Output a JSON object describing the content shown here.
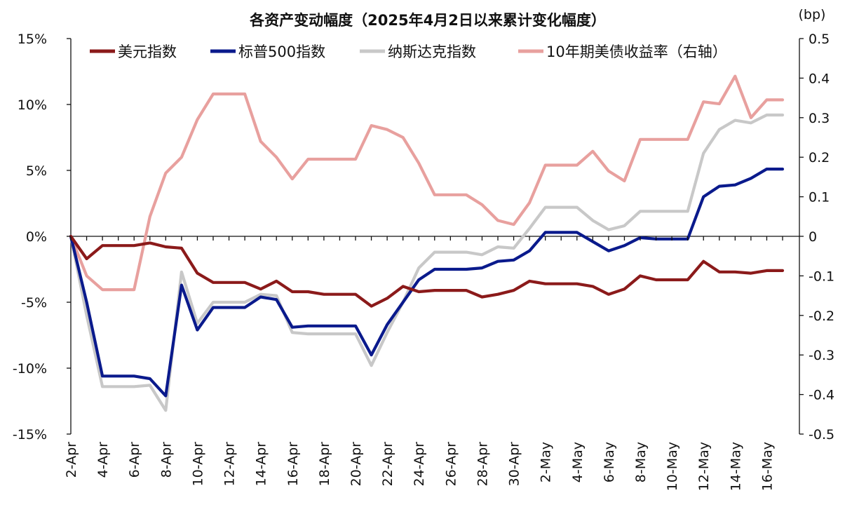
{
  "chart_data": {
    "type": "line",
    "title": "各资产变动幅度（2025年4月2日以来累计变化幅度）",
    "y2_unit_label": "(bp)",
    "left_axis": {
      "ylim": [
        -15,
        15
      ],
      "ticks": [
        15,
        10,
        5,
        0,
        -5,
        -10,
        -15
      ],
      "tick_labels": [
        "15%",
        "10%",
        "5%",
        "0%",
        "-5%",
        "-10%",
        "-15%"
      ]
    },
    "right_axis": {
      "ylim": [
        -0.5,
        0.5
      ],
      "ticks": [
        0.5,
        0.4,
        0.3,
        0.2,
        0.1,
        0,
        -0.1,
        -0.2,
        -0.3,
        -0.4,
        -0.5
      ],
      "tick_labels": [
        "0.5",
        "0.4",
        "0.3",
        "0.2",
        "0.1",
        "0",
        "-0.1",
        "-0.2",
        "-0.3",
        "-0.4",
        "-0.5"
      ]
    },
    "x": [
      "2-Apr",
      "3-Apr",
      "4-Apr",
      "5-Apr",
      "6-Apr",
      "7-Apr",
      "8-Apr",
      "9-Apr",
      "10-Apr",
      "11-Apr",
      "12-Apr",
      "13-Apr",
      "14-Apr",
      "15-Apr",
      "16-Apr",
      "17-Apr",
      "18-Apr",
      "19-Apr",
      "20-Apr",
      "21-Apr",
      "22-Apr",
      "23-Apr",
      "24-Apr",
      "25-Apr",
      "26-Apr",
      "27-Apr",
      "28-Apr",
      "29-Apr",
      "30-Apr",
      "1-May",
      "2-May",
      "3-May",
      "4-May",
      "5-May",
      "6-May",
      "7-May",
      "8-May",
      "9-May",
      "10-May",
      "11-May",
      "12-May",
      "13-May",
      "14-May",
      "15-May",
      "16-May",
      "17-May"
    ],
    "x_tick_labels": [
      "2-Apr",
      "",
      "4-Apr",
      "",
      "6-Apr",
      "",
      "8-Apr",
      "",
      "10-Apr",
      "",
      "12-Apr",
      "",
      "14-Apr",
      "",
      "16-Apr",
      "",
      "18-Apr",
      "",
      "20-Apr",
      "",
      "22-Apr",
      "",
      "24-Apr",
      "",
      "26-Apr",
      "",
      "28-Apr",
      "",
      "30-Apr",
      "",
      "2-May",
      "",
      "4-May",
      "",
      "6-May",
      "",
      "8-May",
      "",
      "10-May",
      "",
      "12-May",
      "",
      "14-May",
      "",
      "16-May",
      ""
    ],
    "legend": [
      "美元指数",
      "标普500指数",
      "纳斯达克指数",
      "10年期美债收益率（右轴）"
    ],
    "series": [
      {
        "name": "美元指数",
        "axis": "left",
        "color": "#8b1a1a",
        "values": [
          0,
          -1.7,
          -0.7,
          -0.7,
          -0.7,
          -0.5,
          -0.8,
          -0.9,
          -2.8,
          -3.5,
          -3.5,
          -3.5,
          -4.0,
          -3.4,
          -4.2,
          -4.2,
          -4.4,
          -4.4,
          -4.4,
          -5.3,
          -4.7,
          -3.8,
          -4.2,
          -4.1,
          -4.1,
          -4.1,
          -4.6,
          -4.4,
          -4.1,
          -3.4,
          -3.6,
          -3.6,
          -3.6,
          -3.8,
          -4.4,
          -4.0,
          -3.0,
          -3.3,
          -3.3,
          -3.3,
          -1.9,
          -2.7,
          -2.7,
          -2.8,
          -2.6,
          -2.6
        ]
      },
      {
        "name": "标普500指数",
        "axis": "left",
        "color": "#0a1a8c",
        "values": [
          0,
          -5.0,
          -10.6,
          -10.6,
          -10.6,
          -10.8,
          -12.1,
          -3.7,
          -7.1,
          -5.4,
          -5.4,
          -5.4,
          -4.6,
          -4.8,
          -6.9,
          -6.8,
          -6.8,
          -6.8,
          -6.8,
          -9.0,
          -6.7,
          -5.0,
          -3.3,
          -2.5,
          -2.5,
          -2.5,
          -2.4,
          -1.9,
          -1.8,
          -1.1,
          0.3,
          0.3,
          0.3,
          -0.4,
          -1.1,
          -0.7,
          -0.1,
          -0.2,
          -0.2,
          -0.2,
          3.0,
          3.8,
          3.9,
          4.4,
          5.1,
          5.1
        ]
      },
      {
        "name": "纳斯达克指数",
        "axis": "left",
        "color": "#c8c8c8",
        "values": [
          0,
          -6.0,
          -11.4,
          -11.4,
          -11.4,
          -11.3,
          -13.2,
          -2.7,
          -6.6,
          -5.0,
          -5.0,
          -5.0,
          -4.4,
          -4.5,
          -7.3,
          -7.4,
          -7.4,
          -7.4,
          -7.4,
          -9.8,
          -7.3,
          -5.0,
          -2.4,
          -1.2,
          -1.2,
          -1.2,
          -1.4,
          -0.8,
          -0.9,
          0.6,
          2.2,
          2.2,
          2.2,
          1.2,
          0.5,
          0.8,
          1.9,
          1.9,
          1.9,
          1.9,
          6.3,
          8.1,
          8.8,
          8.6,
          9.2,
          9.2
        ]
      },
      {
        "name": "10年期美债收益率（右轴）",
        "axis": "right",
        "color": "#e8a09e",
        "values": [
          0,
          -0.1,
          -0.135,
          -0.135,
          -0.135,
          0.05,
          0.16,
          0.2,
          0.295,
          0.36,
          0.36,
          0.36,
          0.24,
          0.2,
          0.145,
          0.195,
          0.195,
          0.195,
          0.195,
          0.28,
          0.27,
          0.25,
          0.185,
          0.105,
          0.105,
          0.105,
          0.08,
          0.04,
          0.03,
          0.085,
          0.18,
          0.18,
          0.18,
          0.215,
          0.165,
          0.14,
          0.245,
          0.245,
          0.245,
          0.245,
          0.34,
          0.335,
          0.405,
          0.3,
          0.345,
          0.345
        ]
      }
    ]
  }
}
